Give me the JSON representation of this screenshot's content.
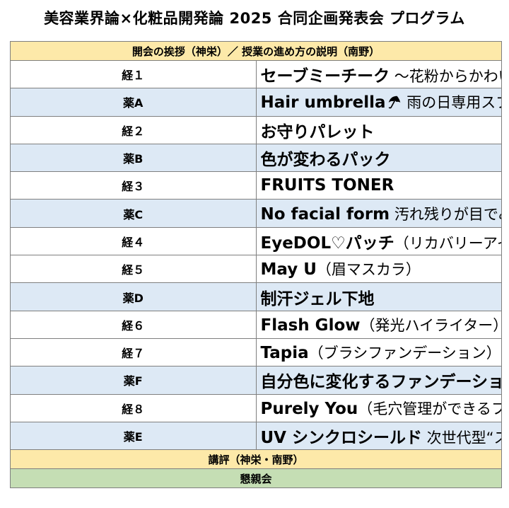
{
  "title": "美容業界論×化粧品開発論 2025 合同企画発表会 プログラム",
  "opening": "開会の挨拶（神栄）／ 授業の進め方の説明（南野）",
  "rows": [
    {
      "code": "経１",
      "name": "セーブミーチーク",
      "desc": " ～花粉からかわいいを守る～",
      "type": "kei"
    },
    {
      "code": "薬A",
      "name": "Hair umbrella",
      "desc": " 雨の日専用スプレー型ヘアオイル",
      "type": "yaku",
      "icon": "umbrella-icon"
    },
    {
      "code": "経２",
      "name": "お守りパレット",
      "desc": "",
      "type": "kei"
    },
    {
      "code": "薬B",
      "name": "色が変わるパック",
      "desc": "",
      "type": "yaku"
    },
    {
      "code": "経３",
      "name": "FRUITS TONER",
      "desc": "",
      "type": "kei"
    },
    {
      "code": "薬C",
      "name": "No facial form",
      "desc": "  汚れ残りが目でみてわかる洗顔料",
      "type": "yaku"
    },
    {
      "code": "経４",
      "name": "EyeDOL♡パッチ",
      "desc": "（リカバリーアイパッチ）",
      "type": "kei"
    },
    {
      "code": "経５",
      "name": "May U",
      "desc": "（眉マスカラ）",
      "type": "kei"
    },
    {
      "code": "薬D",
      "name": "制汗ジェル下地",
      "desc": "",
      "type": "yaku"
    },
    {
      "code": "経６",
      "name": "Flash Glow",
      "desc": "（発光ハイライター）",
      "type": "kei"
    },
    {
      "code": "経７",
      "name": "Tapia",
      "desc": "（ブラシファンデーション）",
      "type": "kei"
    },
    {
      "code": "薬F",
      "name": "自分色に変化するファンデーション",
      "desc": "",
      "type": "yaku"
    },
    {
      "code": "経８",
      "name": "Purely You",
      "desc": "（毛穴管理ができるファンデーション）",
      "type": "kei"
    },
    {
      "code": "薬E",
      "name": "UV シンクロシールド",
      "desc": "  次世代型“スマート日焼け止め",
      "type": "yaku"
    }
  ],
  "review": "講評（神栄・南野）",
  "party": "懇親会",
  "colors": {
    "band_yellow": "#fde9a9",
    "band_green": "#c5deb4",
    "row_blue": "#dde9f5",
    "border": "#7f7f7f"
  }
}
